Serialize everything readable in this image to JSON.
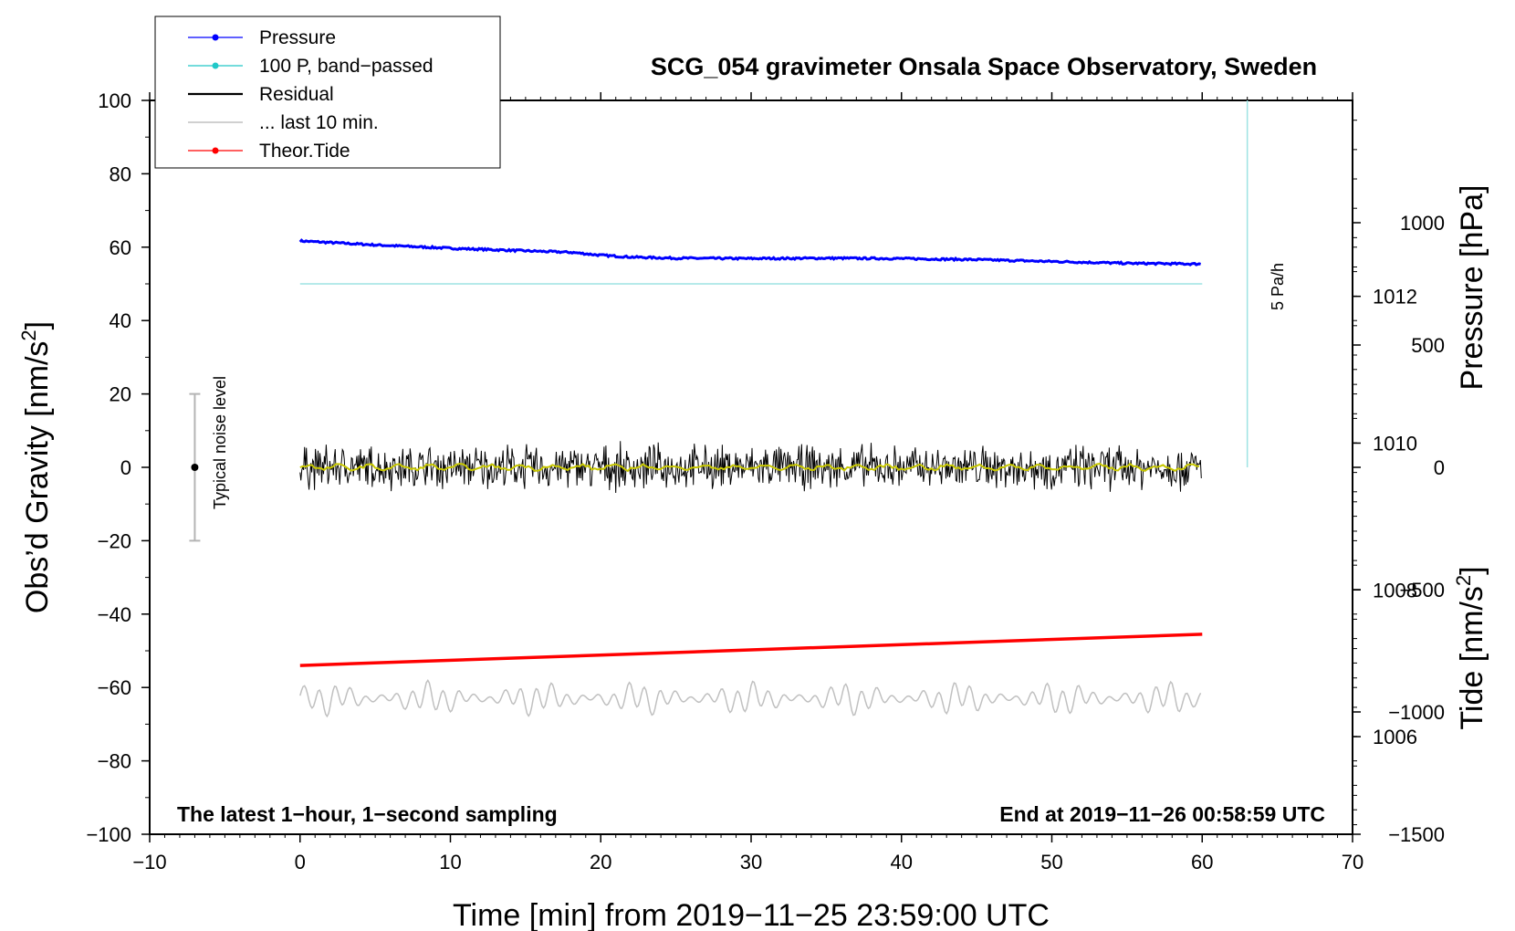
{
  "chart_data": {
    "type": "line",
    "title": "SCG_054 gravimeter Onsala Space Observatory, Sweden",
    "xlabel": "Time [min] from 2019−11−25 23:59:00 UTC",
    "ylabel_left_main": "Obs’d Gravity [nm/s",
    "ylabel_left_sup": "2",
    "ylabel_left_tail": "]",
    "ylabel_right_top": "Pressure [hPa]",
    "ylabel_right_bottom_main": "Tide [nm/s",
    "ylabel_right_bottom_sup": "2",
    "ylabel_right_bottom_tail": "]",
    "xlim": [
      -10,
      70
    ],
    "ylim_left": [
      -100,
      100
    ],
    "ylim_pressure": [
      1004.67,
      1014.67
    ],
    "ylim_tide": [
      -1500,
      1500
    ],
    "x_ticks": [
      "−10",
      "0",
      "10",
      "20",
      "30",
      "40",
      "50",
      "60",
      "70"
    ],
    "y_left_ticks": [
      "100",
      "80",
      "60",
      "40",
      "20",
      "0",
      "−20",
      "−40",
      "−60",
      "−80",
      "−100"
    ],
    "pressure_ticks": [
      "1012",
      "1010",
      "1008",
      "1006"
    ],
    "tide_ticks": [
      "1000",
      "500",
      "0",
      "−500",
      "−1000",
      "−1500"
    ],
    "corner_left": "The latest 1−hour, 1−second sampling",
    "corner_right": "End at 2019−11−26 00:58:59 UTC",
    "noise_label": "Typical noise level",
    "noise_range": [
      -20,
      20
    ],
    "noise_center": [
      -7,
      0
    ],
    "scale_bar_label": "5 Pa/h",
    "scale_bar": {
      "x": 63,
      "y_from": 0,
      "y_to": 100
    },
    "legend": [
      {
        "label": "Pressure",
        "color": "#0000ff",
        "marker": true
      },
      {
        "label": "100 P, band−passed",
        "color": "#20c8c8",
        "marker": true
      },
      {
        "label": "Residual",
        "color": "#000000",
        "marker": false
      },
      {
        "label": "... last 10 min.",
        "color": "#b4b4b4",
        "marker": false
      },
      {
        "label": "Theor.Tide",
        "color": "#ff0000",
        "marker": true
      }
    ],
    "series": [
      {
        "name": "Pressure",
        "color": "#0000ff",
        "x": [
          0,
          5,
          10,
          15,
          18,
          20,
          22,
          25,
          30,
          35,
          40,
          45,
          50,
          55,
          60
        ],
        "values": [
          61.7,
          60.6,
          59.7,
          59.0,
          58.6,
          57.8,
          57.3,
          57.0,
          56.9,
          57.0,
          56.9,
          56.6,
          56.1,
          55.6,
          55.4
        ]
      },
      {
        "name": "100 P, band−passed",
        "color": "#9ee3e3",
        "x": [
          0,
          60
        ],
        "values": [
          50,
          50
        ]
      },
      {
        "name": "Residual",
        "color": "#000000",
        "x": [
          0,
          60
        ],
        "values": [
          0,
          0
        ],
        "amplitude": 6
      },
      {
        "name": "Residual smoothed",
        "color": "#c8c800",
        "x": [
          0,
          60
        ],
        "values": [
          0,
          0
        ]
      },
      {
        "name": "... last 10 min.",
        "color": "#c0c0c0",
        "x": [
          0,
          60
        ],
        "values": [
          -63,
          -63
        ],
        "amplitude": 5
      },
      {
        "name": "Theor.Tide",
        "color": "#ff0000",
        "x": [
          0,
          60
        ],
        "values": [
          -54,
          -45.5
        ]
      }
    ]
  }
}
